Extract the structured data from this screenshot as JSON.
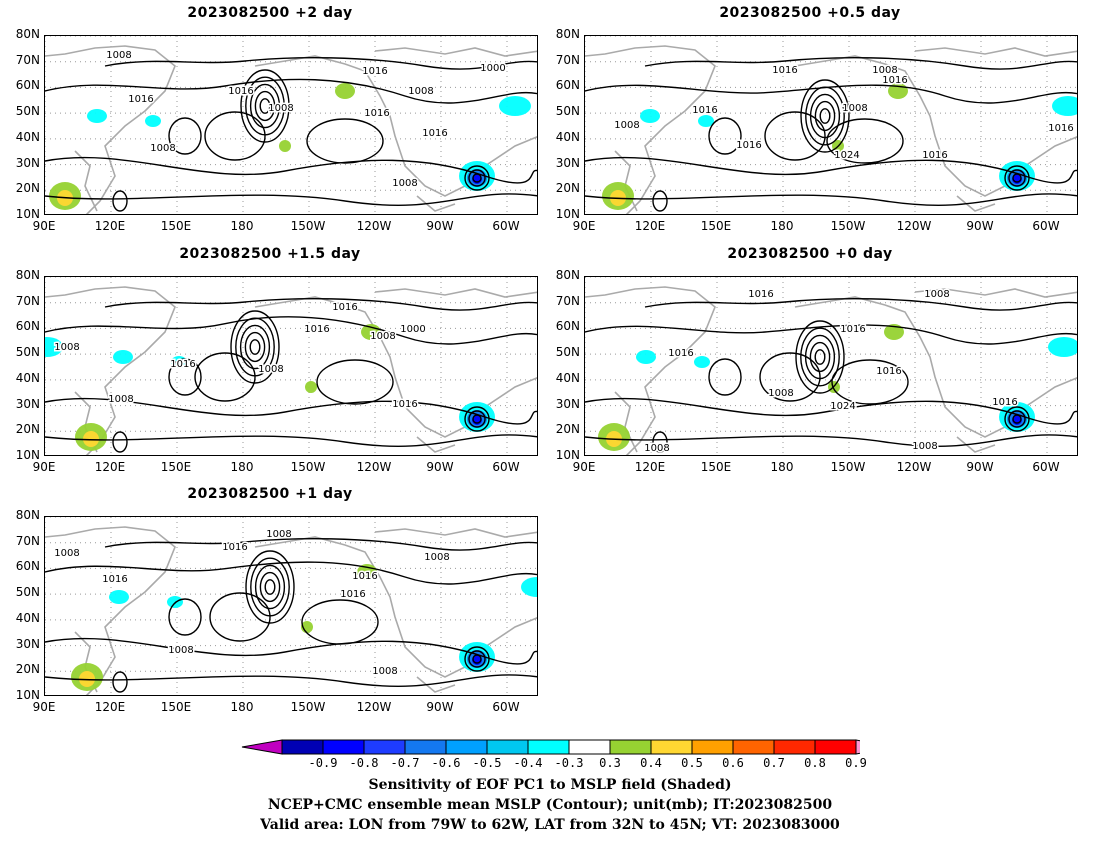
{
  "panels": [
    {
      "title": "2023082500  +2 day",
      "contour_labels": [
        "1008",
        "1016",
        "1016",
        "1008",
        "1016",
        "1000",
        "1008",
        "1016",
        "1016",
        "1008",
        "1008"
      ]
    },
    {
      "title": "2023082500  +0.5 day",
      "contour_labels": [
        "1016",
        "1008",
        "1016",
        "1008",
        "1008",
        "1016",
        "1016",
        "1024",
        "1016",
        "1016"
      ]
    },
    {
      "title": "2023082500  +1.5 day",
      "contour_labels": [
        "1016",
        "1016",
        "1008",
        "1000",
        "1008",
        "1016",
        "1008",
        "1008",
        "1016"
      ]
    },
    {
      "title": "2023082500  +0  day",
      "contour_labels": [
        "1016",
        "1008",
        "1016",
        "1016",
        "1008",
        "1024",
        "1016",
        "1016",
        "1008",
        "1008"
      ]
    },
    {
      "title": "2023082500  +1 day",
      "contour_labels": [
        "1008",
        "1016",
        "1008",
        "1016",
        "1008",
        "1016",
        "1016",
        "1008",
        "1008"
      ]
    }
  ],
  "axes": {
    "lat_labels": [
      "80N",
      "70N",
      "60N",
      "50N",
      "40N",
      "30N",
      "20N",
      "10N"
    ],
    "lon_labels": [
      "90E",
      "120E",
      "150E",
      "180",
      "150W",
      "120W",
      "90W",
      "60W"
    ]
  },
  "colorbar": {
    "labels": [
      "-0.9",
      "-0.8",
      "-0.7",
      "-0.6",
      "-0.5",
      "-0.4",
      "-0.3",
      "0.3",
      "0.4",
      "0.5",
      "0.6",
      "0.7",
      "0.8",
      "0.9"
    ],
    "colors": [
      "#c000c0",
      "#0000b4",
      "#0000ff",
      "#1e3cff",
      "#1478f0",
      "#00a0ff",
      "#00c8f0",
      "#00ffff",
      "#ffffff",
      "#96d232",
      "#ffd732",
      "#ffa000",
      "#ff6400",
      "#ff2800",
      "#ff0000",
      "#ff96d2"
    ]
  },
  "caption": {
    "line1": "Sensitivity of EOF PC1 to MSLP field (Shaded)",
    "line2": "NCEP+CMC ensemble mean MSLP (Contour); unit(mb); IT:2023082500",
    "line3": "Valid area: LON from 79W to 62W, LAT from 32N to 45N; VT: 2023083000"
  }
}
